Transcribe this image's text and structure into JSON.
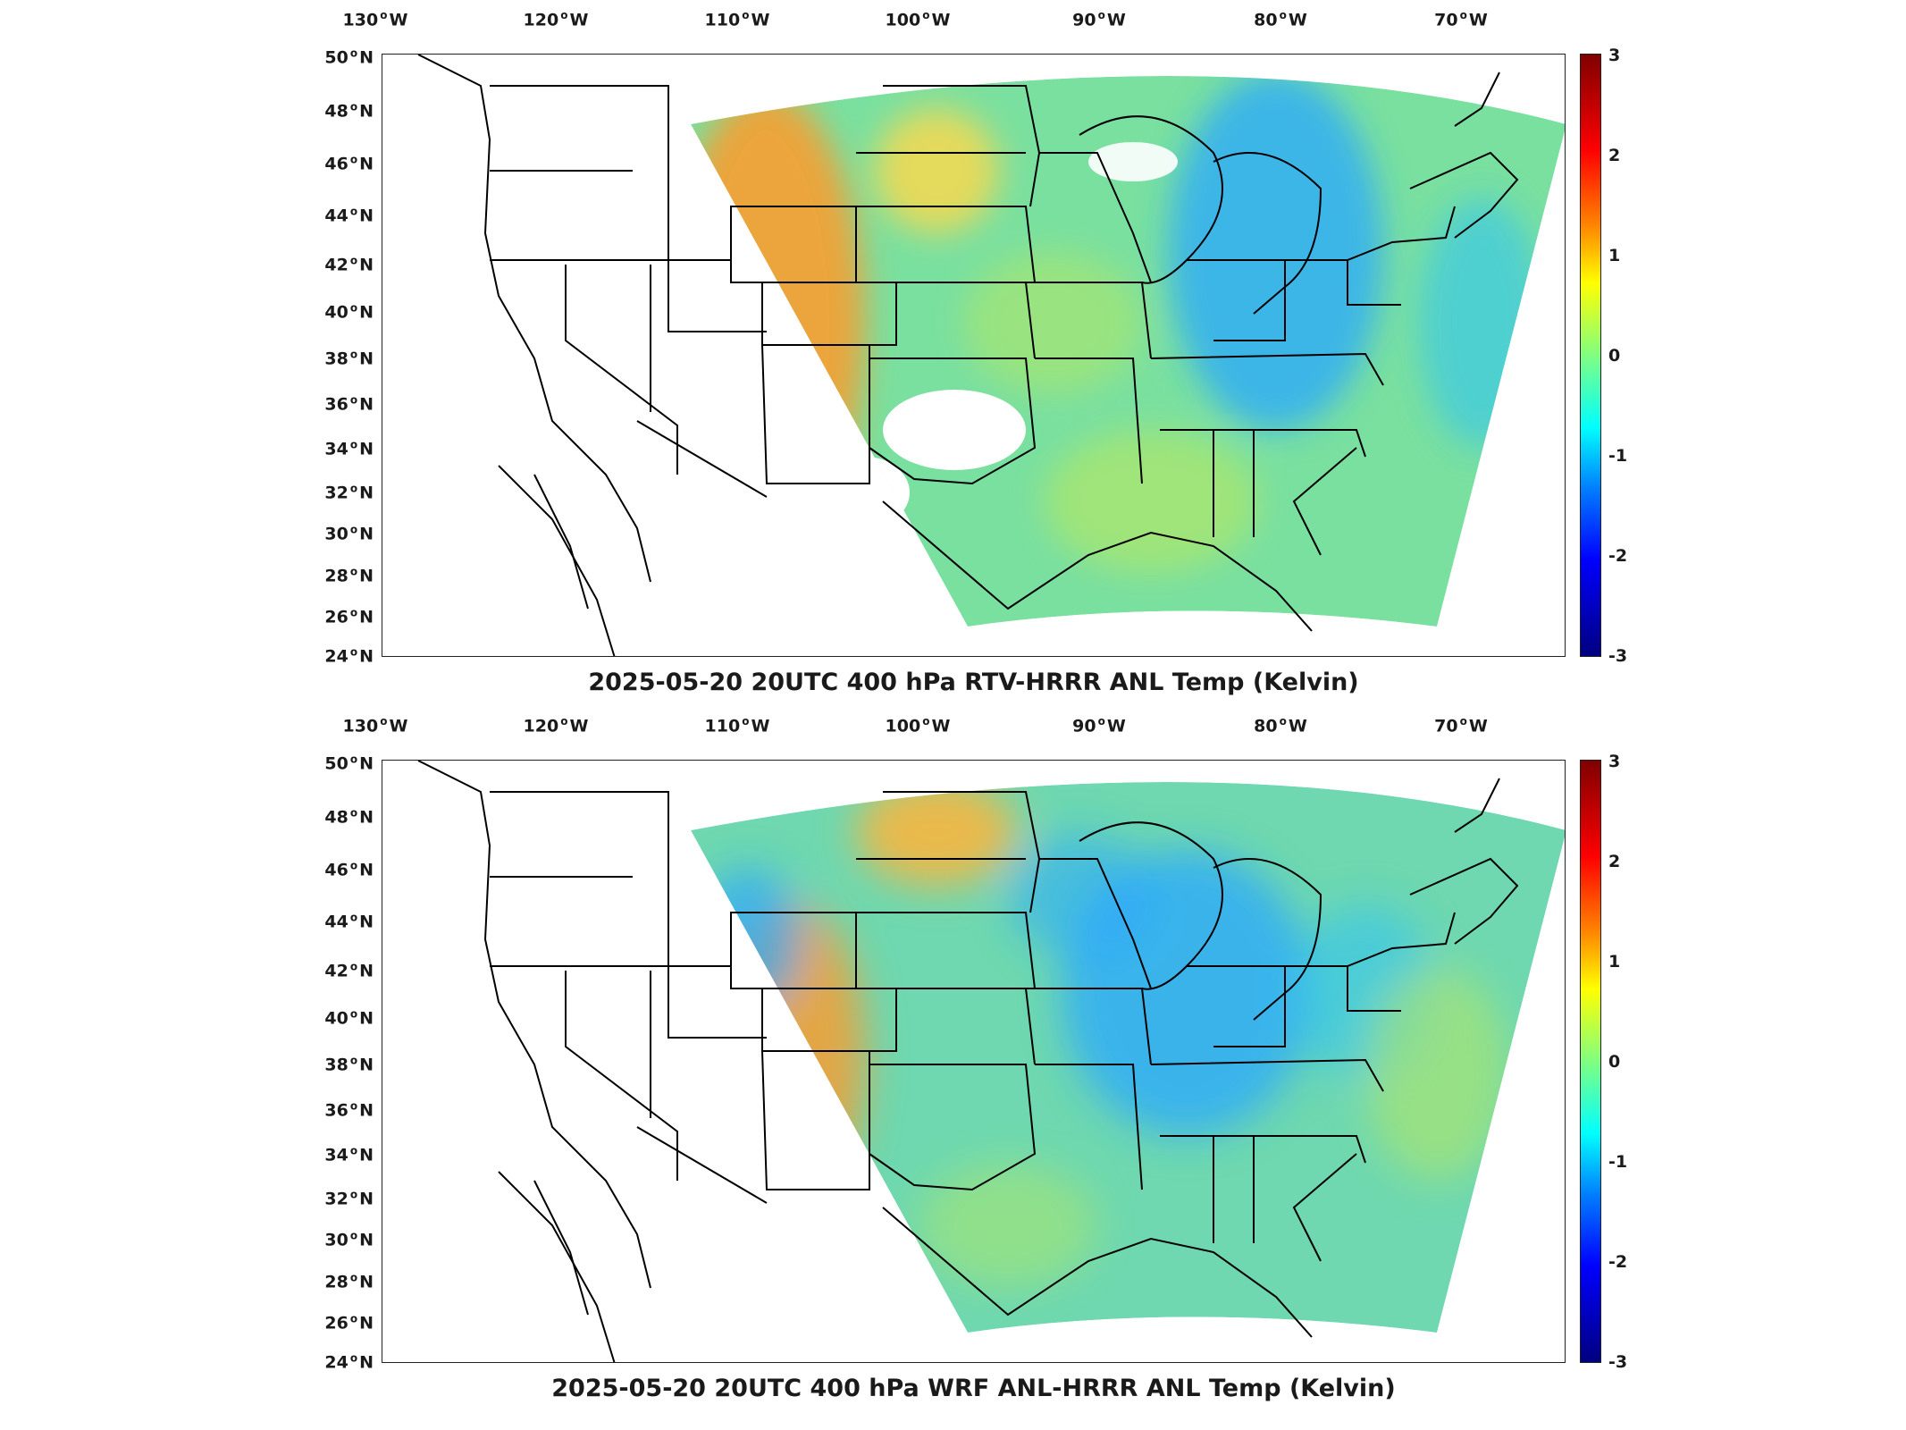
{
  "lon_labels": [
    {
      "deg": "130",
      "dir": "W"
    },
    {
      "deg": "120",
      "dir": "W"
    },
    {
      "deg": "110",
      "dir": "W"
    },
    {
      "deg": "100",
      "dir": "W"
    },
    {
      "deg": "90",
      "dir": "W"
    },
    {
      "deg": "80",
      "dir": "W"
    },
    {
      "deg": "70",
      "dir": "W"
    }
  ],
  "lat_labels": [
    {
      "deg": "50",
      "dir": "N"
    },
    {
      "deg": "48",
      "dir": "N"
    },
    {
      "deg": "46",
      "dir": "N"
    },
    {
      "deg": "44",
      "dir": "N"
    },
    {
      "deg": "42",
      "dir": "N"
    },
    {
      "deg": "40",
      "dir": "N"
    },
    {
      "deg": "38",
      "dir": "N"
    },
    {
      "deg": "36",
      "dir": "N"
    },
    {
      "deg": "34",
      "dir": "N"
    },
    {
      "deg": "32",
      "dir": "N"
    },
    {
      "deg": "30",
      "dir": "N"
    },
    {
      "deg": "28",
      "dir": "N"
    },
    {
      "deg": "26",
      "dir": "N"
    },
    {
      "deg": "24",
      "dir": "N"
    }
  ],
  "colorbar": {
    "ticks": [
      "3",
      "2",
      "1",
      "0",
      "-1",
      "-2",
      "-3"
    ],
    "min": -3,
    "max": 3,
    "colormap": "jet"
  },
  "panels": [
    {
      "title": "2025-05-20 20UTC 400 hPa RTV-HRRR ANL Temp (Kelvin)"
    },
    {
      "title": "2025-05-20 20UTC 400 hPa WRF ANL-HRRR ANL Temp (Kelvin)"
    }
  ],
  "colors": {
    "warm": "#ff8c1a",
    "neutral": "#7fe08a",
    "cool": "#2aa7ff",
    "border": "#000000"
  }
}
